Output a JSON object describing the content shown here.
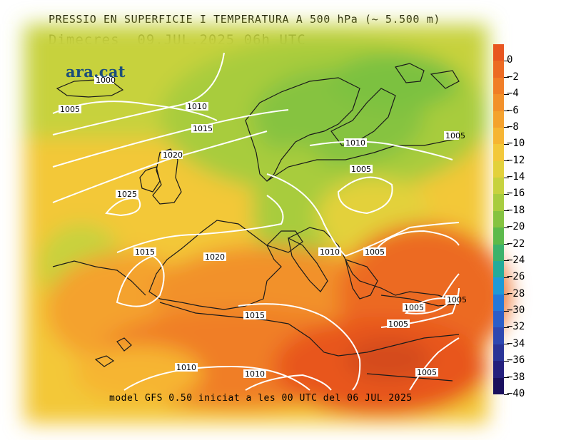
{
  "header": {
    "title": "PRESSIO EN SUPERFICIE I TEMPERATURA A 500 hPa (~ 5.500 m)",
    "subtitle": "Dimecres  09.JUL.2025 06h UTC"
  },
  "brand": {
    "text": "ara.cat"
  },
  "footer": {
    "text": "model GFS 0.50 iniciat a les 00 UTC del 06 JUL 2025"
  },
  "colorbar": {
    "labels": [
      "0",
      "−2",
      "−4",
      "−6",
      "−8",
      "−10",
      "−12",
      "−14",
      "−16",
      "−18",
      "−20",
      "−22",
      "−24",
      "−26",
      "−28",
      "−30",
      "−32",
      "−34",
      "−36",
      "−38",
      "−40"
    ],
    "colors": [
      "#e8561f",
      "#ec6b22",
      "#f07e25",
      "#f29129",
      "#f4a22d",
      "#f6b532",
      "#f3c839",
      "#e3d13b",
      "#c7d23d",
      "#a8cc3e",
      "#86c33f",
      "#5dba49",
      "#3cb26a",
      "#22ab9a",
      "#1e9ad6",
      "#2478d8",
      "#2b5ec8",
      "#2f48b0",
      "#2b3496",
      "#251f7c",
      "#1a0f5c"
    ]
  },
  "isobars": {
    "labels": [
      "1000",
      "1005",
      "1010",
      "1015",
      "1020",
      "1025",
      "1010",
      "1005",
      "1015",
      "1020",
      "1010",
      "1005",
      "1005",
      "1005",
      "1015",
      "1010",
      "1010",
      "1005",
      "1005",
      "1005"
    ]
  },
  "colors": {
    "hot": "#e25a1e",
    "warm": "#f4a22d",
    "mild": "#e6cf3a",
    "cool": "#a8cc3e",
    "cold": "#86c33f",
    "coast": "#1a1a1a",
    "isobar": "#ffffff",
    "brand": "#1d4f7a"
  }
}
